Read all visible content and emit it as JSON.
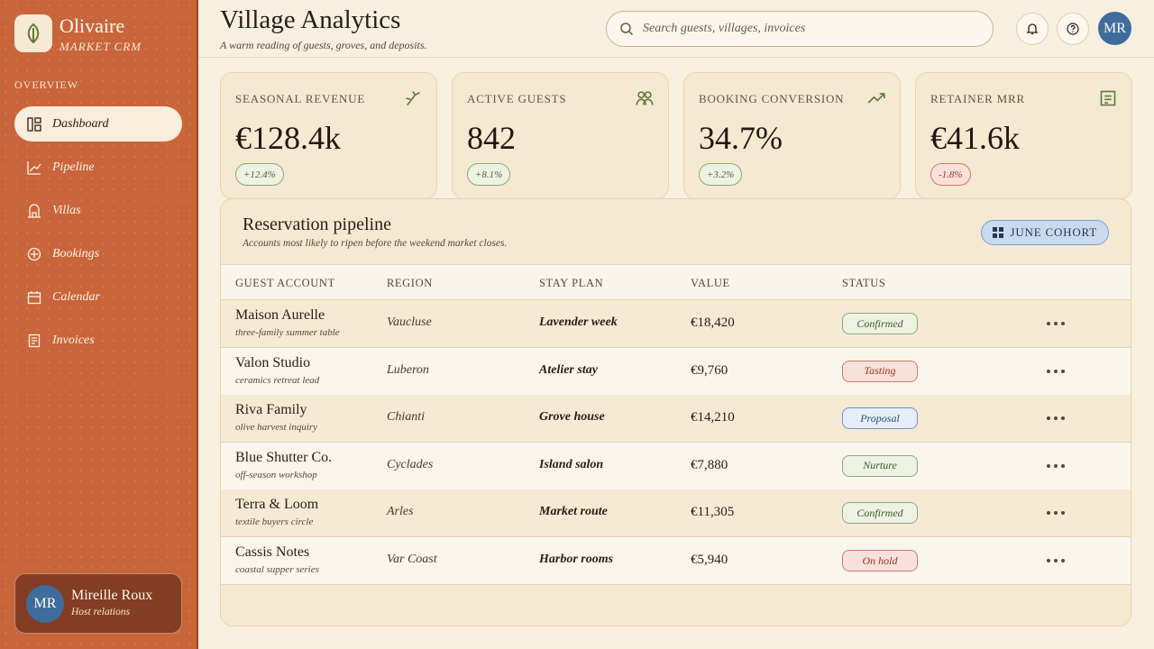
{
  "brand": {
    "name": "Olivaire",
    "tagline": "MARKET CRM"
  },
  "nav": {
    "section": "OVERVIEW",
    "items": [
      "Dashboard",
      "Pipeline",
      "Villas",
      "Bookings",
      "Calendar",
      "Invoices"
    ]
  },
  "user": {
    "initials": "MR",
    "name": "Mireille Roux",
    "role": "Host relations"
  },
  "header": {
    "title": "Village Analytics",
    "subtitle": "A warm reading of guests, groves, and deposits.",
    "search_placeholder": "Search guests, villages, invoices",
    "avatar": "MR"
  },
  "kpis": [
    {
      "label": "SEASONAL REVENUE",
      "value": "€128.4k",
      "delta": "+12.4%"
    },
    {
      "label": "ACTIVE GUESTS",
      "value": "842",
      "delta": "+8.1%"
    },
    {
      "label": "BOOKING CONVERSION",
      "value": "34.7%",
      "delta": "+3.2%"
    },
    {
      "label": "RETAINER MRR",
      "value": "€41.6k",
      "delta": "-1.8%"
    }
  ],
  "table": {
    "title": "Reservation pipeline",
    "subtitle": "Accounts most likely to ripen before the weekend market closes.",
    "filter": "JUNE COHORT",
    "columns": [
      "GUEST ACCOUNT",
      "REGION",
      "STAY PLAN",
      "VALUE",
      "STATUS"
    ],
    "rows": [
      {
        "account": "Maison Aurelle",
        "note": "three-family summer table",
        "region": "Vaucluse",
        "plan": "Lavender week",
        "value": "€18,420",
        "status": "Confirmed"
      },
      {
        "account": "Valon Studio",
        "note": "ceramics retreat lead",
        "region": "Luberon",
        "plan": "Atelier stay",
        "value": "€9,760",
        "status": "Tasting"
      },
      {
        "account": "Riva Family",
        "note": "olive harvest inquiry",
        "region": "Chianti",
        "plan": "Grove house",
        "value": "€14,210",
        "status": "Proposal"
      },
      {
        "account": "Blue Shutter Co.",
        "note": "off-season workshop",
        "region": "Cyclades",
        "plan": "Island salon",
        "value": "€7,880",
        "status": "Nurture"
      },
      {
        "account": "Terra & Loom",
        "note": "textile buyers circle",
        "region": "Arles",
        "plan": "Market route",
        "value": "€11,305",
        "status": "Confirmed"
      },
      {
        "account": "Cassis Notes",
        "note": "coastal supper series",
        "region": "Var Coast",
        "plan": "Harbor rooms",
        "value": "€5,940",
        "status": "On hold"
      }
    ]
  }
}
